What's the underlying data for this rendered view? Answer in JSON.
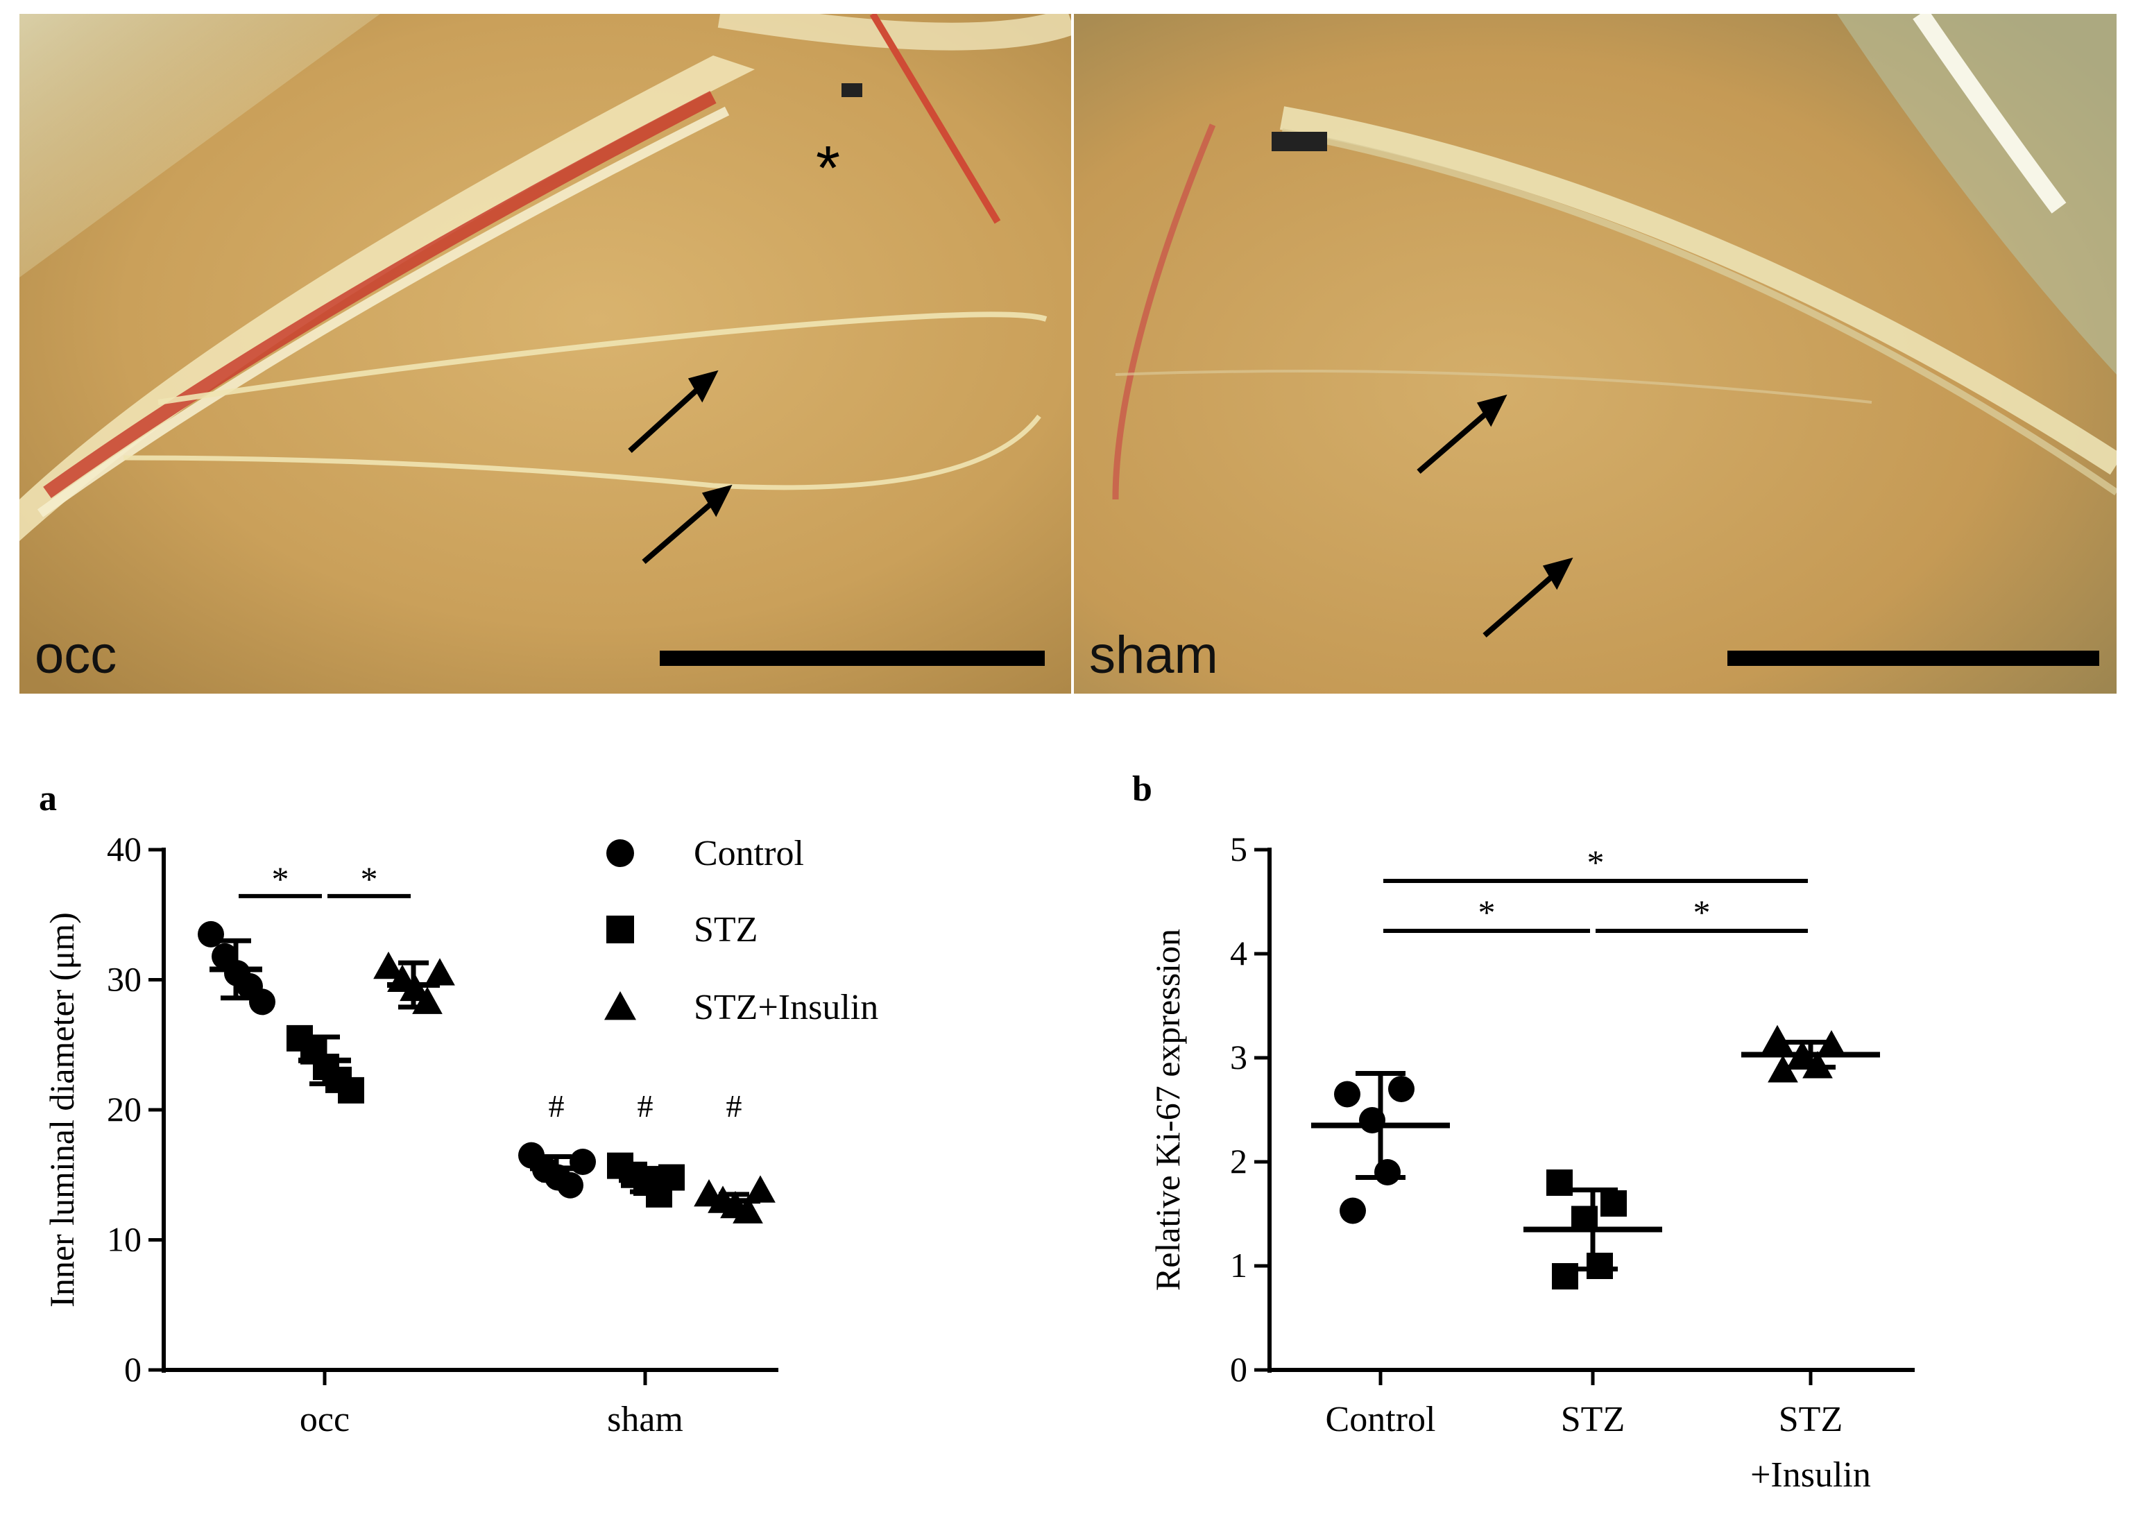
{
  "photos": {
    "left": {
      "label": "occ",
      "asterisk": "*"
    },
    "right": {
      "label": "sham"
    }
  },
  "chart_data": [
    {
      "panel": "a",
      "type": "scatter",
      "xlabel": "",
      "ylabel": "Inner luminal diameter (μm)",
      "ylim": [
        0,
        40
      ],
      "yticks": [
        0,
        10,
        20,
        30,
        40
      ],
      "categories": [
        "occ",
        "sham"
      ],
      "legend": {
        "placement": "top-right",
        "entries": [
          "Control",
          "STZ",
          "STZ+Insulin"
        ]
      },
      "series": [
        {
          "name": "Control",
          "marker": "circle",
          "groups": [
            {
              "category": "occ",
              "points": [
                33.5,
                31.8,
                30.5,
                29.5,
                28.3
              ],
              "mean": 30.8,
              "sd": 2.2
            },
            {
              "category": "sham",
              "points": [
                16.5,
                15.4,
                14.8,
                14.2,
                16.0
              ],
              "mean": 15.5,
              "sd": 0.9
            }
          ]
        },
        {
          "name": "STZ",
          "marker": "square",
          "groups": [
            {
              "category": "occ",
              "points": [
                25.5,
                24.5,
                23.3,
                22.3,
                21.5
              ],
              "mean": 23.8,
              "sd": 1.8
            },
            {
              "category": "sham",
              "points": [
                15.7,
                15.0,
                14.4,
                13.5,
                14.8
              ],
              "mean": 14.6,
              "sd": 0.9
            }
          ]
        },
        {
          "name": "STZ+Insulin",
          "marker": "triangle",
          "groups": [
            {
              "category": "occ",
              "points": [
                31.0,
                30.0,
                29.3,
                28.3,
                30.5
              ],
              "mean": 29.6,
              "sd": 1.7
            },
            {
              "category": "sham",
              "points": [
                13.5,
                13.0,
                12.6,
                12.2,
                13.8
              ],
              "mean": 13.0,
              "sd": 0.5
            }
          ]
        }
      ],
      "significance": [
        {
          "from": "Control",
          "to": "STZ",
          "category": "occ",
          "label": "*",
          "y": 37.5
        },
        {
          "from": "STZ",
          "to": "STZ+Insulin",
          "category": "occ",
          "label": "*",
          "y": 37.5
        }
      ],
      "annotations": [
        {
          "series": "Control",
          "category": "sham",
          "label": "#"
        },
        {
          "series": "STZ",
          "category": "sham",
          "label": "#"
        },
        {
          "series": "STZ+Insulin",
          "category": "sham",
          "label": "#"
        }
      ]
    },
    {
      "panel": "b",
      "type": "scatter",
      "xlabel": "",
      "ylabel": "Relative Ki-67 expression",
      "ylim": [
        0,
        5
      ],
      "yticks": [
        0,
        1,
        2,
        3,
        4,
        5
      ],
      "categories": [
        "Control",
        "STZ",
        "STZ +Insulin"
      ],
      "category_lines": [
        [
          "Control"
        ],
        [
          "STZ"
        ],
        [
          "STZ",
          "+Insulin"
        ]
      ],
      "groups": [
        {
          "category": "Control",
          "marker": "circle",
          "points": [
            2.65,
            2.7,
            2.4,
            1.9,
            1.53
          ],
          "mean": 2.35,
          "sd": 0.5
        },
        {
          "category": "STZ",
          "marker": "square",
          "points": [
            1.8,
            1.6,
            1.45,
            1.0,
            0.9
          ],
          "mean": 1.35,
          "sd": 0.38
        },
        {
          "category": "STZ +Insulin",
          "marker": "triangle",
          "points": [
            3.17,
            3.12,
            3.02,
            2.92,
            2.88
          ],
          "mean": 3.03,
          "sd": 0.12
        }
      ],
      "significance": [
        {
          "from": "Control",
          "to": "STZ +Insulin",
          "label": "*",
          "y": 4.7
        },
        {
          "from": "Control",
          "to": "STZ",
          "label": "*",
          "y": 4.22
        },
        {
          "from": "STZ",
          "to": "STZ +Insulin",
          "label": "*",
          "y": 4.22
        }
      ]
    }
  ]
}
